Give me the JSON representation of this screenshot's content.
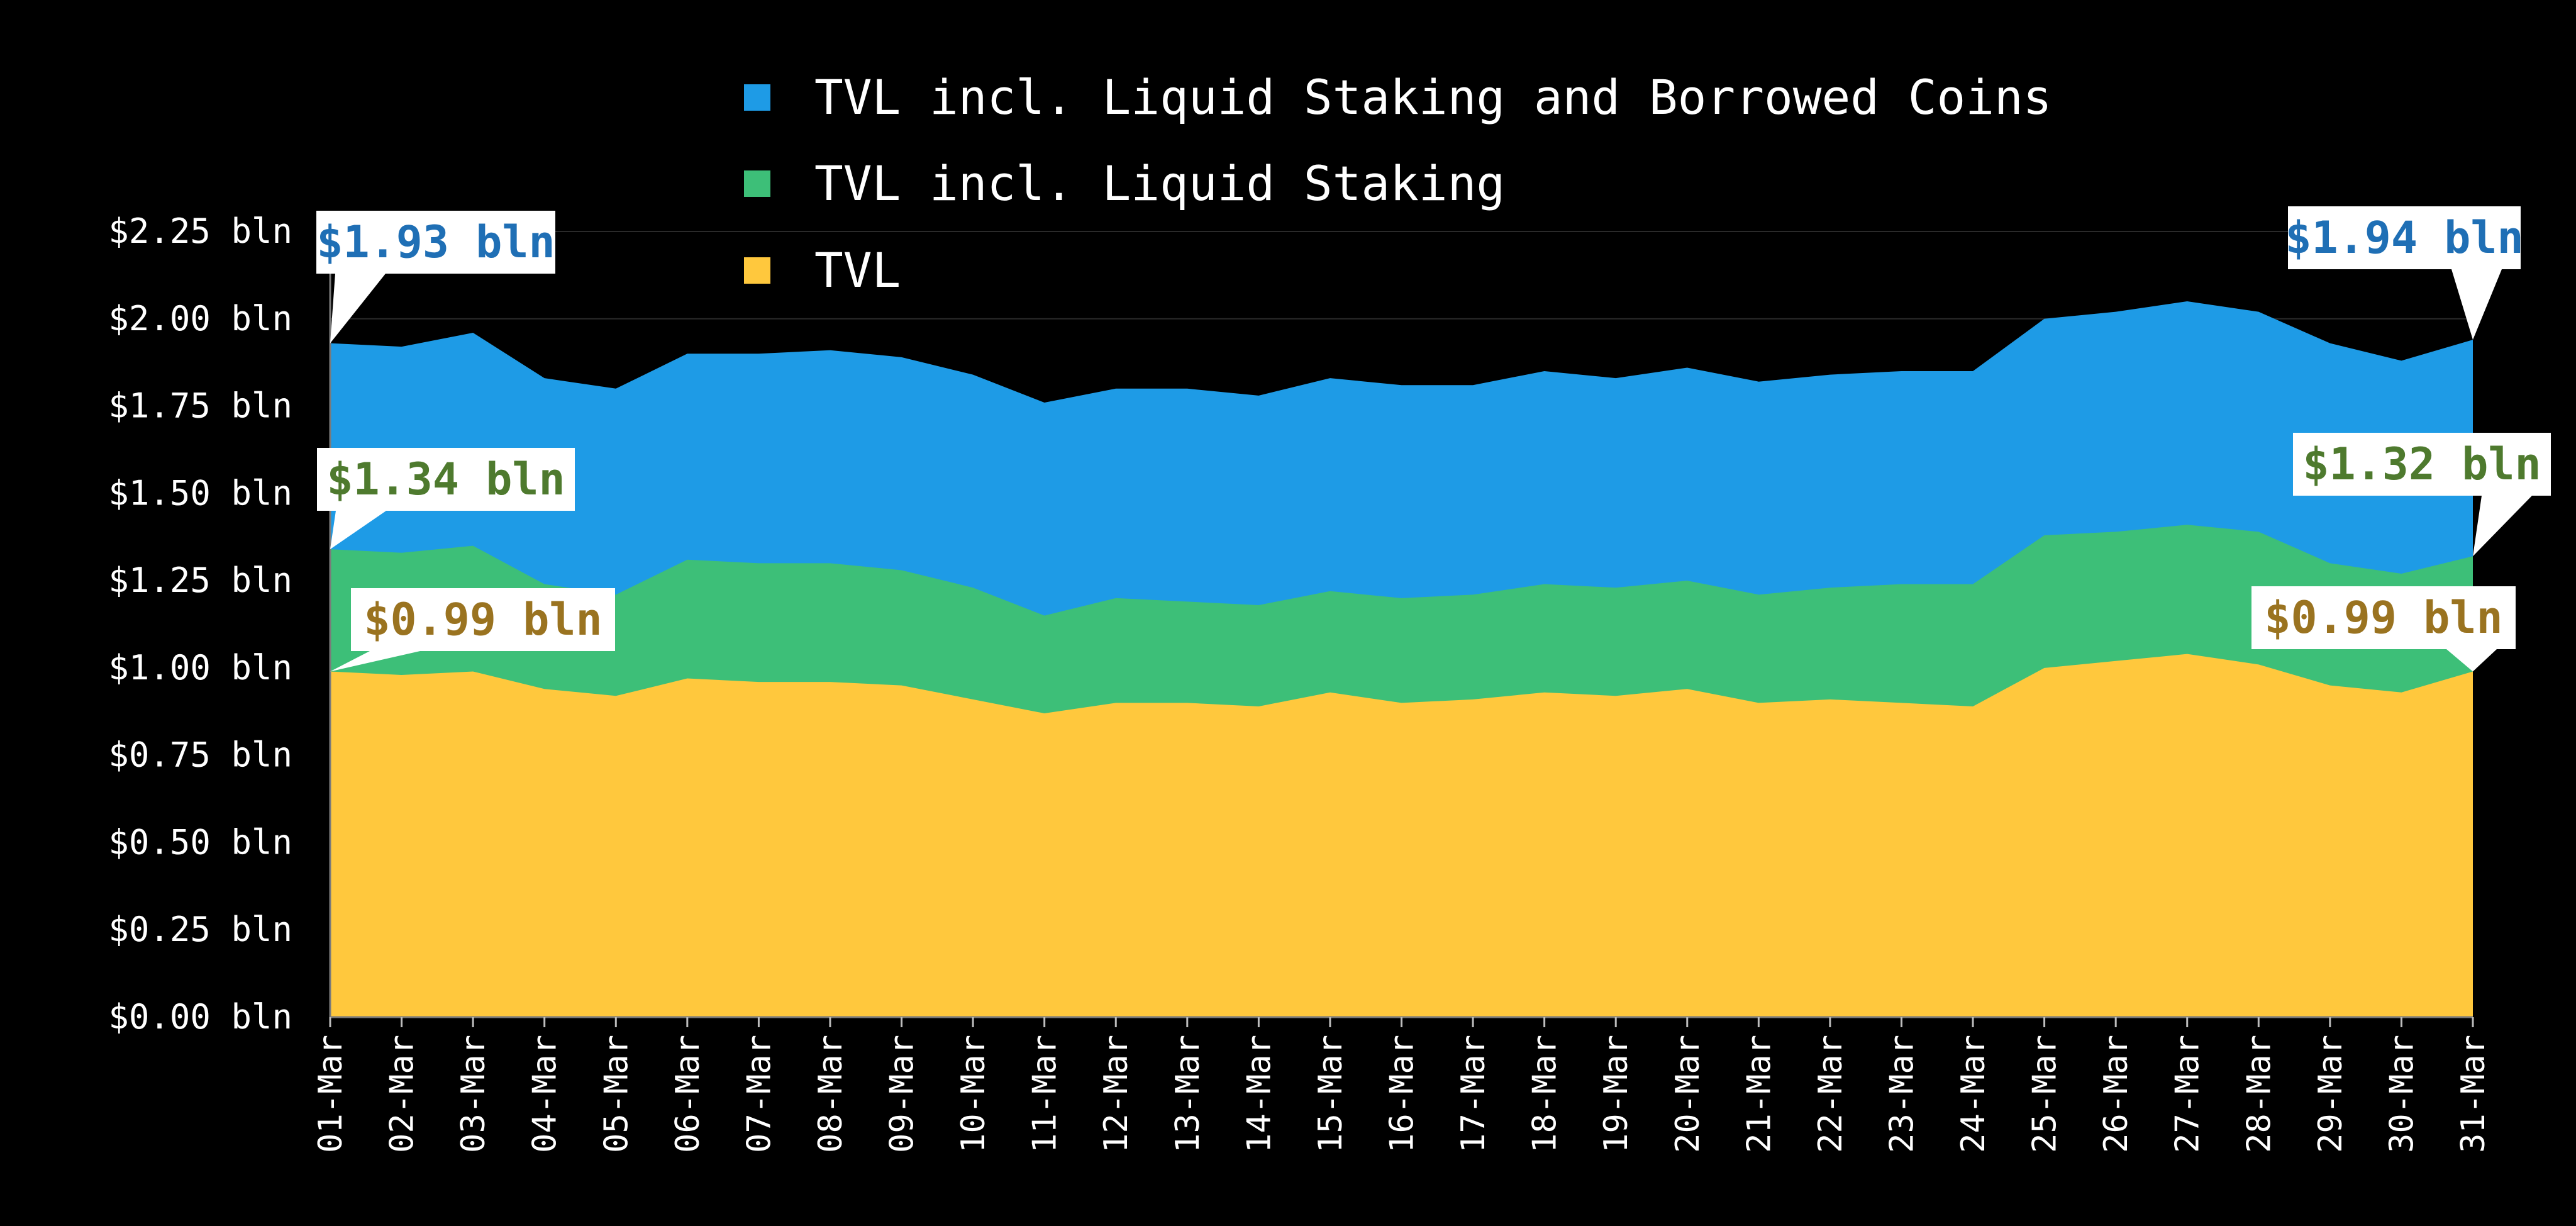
{
  "chart_data": {
    "type": "area",
    "stacked": false,
    "title": "",
    "xlabel": "",
    "ylabel": "",
    "ylim": [
      0,
      2.25
    ],
    "grid": true,
    "legend_position": "top",
    "y_tick_values": [
      0,
      0.25,
      0.5,
      0.75,
      1.0,
      1.25,
      1.5,
      1.75,
      2.0,
      2.25
    ],
    "y_tick_labels": [
      "$0.00 bln",
      "$0.25 bln",
      "$0.50 bln",
      "$0.75 bln",
      "$1.00 bln",
      "$1.25 bln",
      "$1.50 bln",
      "$1.75 bln",
      "$2.00 bln",
      "$2.25 bln"
    ],
    "categories": [
      "01-Mar",
      "02-Mar",
      "03-Mar",
      "04-Mar",
      "05-Mar",
      "06-Mar",
      "07-Mar",
      "08-Mar",
      "09-Mar",
      "10-Mar",
      "11-Mar",
      "12-Mar",
      "13-Mar",
      "14-Mar",
      "15-Mar",
      "16-Mar",
      "17-Mar",
      "18-Mar",
      "19-Mar",
      "20-Mar",
      "21-Mar",
      "22-Mar",
      "23-Mar",
      "24-Mar",
      "25-Mar",
      "26-Mar",
      "27-Mar",
      "28-Mar",
      "29-Mar",
      "30-Mar",
      "31-Mar"
    ],
    "series": [
      {
        "name": "TVL incl. Liquid Staking and Borrowed Coins",
        "color": "#1e9be6",
        "values": [
          1.93,
          1.92,
          1.96,
          1.83,
          1.8,
          1.9,
          1.9,
          1.91,
          1.89,
          1.84,
          1.76,
          1.8,
          1.8,
          1.78,
          1.83,
          1.81,
          1.81,
          1.85,
          1.83,
          1.86,
          1.82,
          1.84,
          1.85,
          1.85,
          2.0,
          2.02,
          2.05,
          2.02,
          1.93,
          1.88,
          1.94
        ]
      },
      {
        "name": "TVL incl. Liquid Staking",
        "color": "#3dbf78",
        "values": [
          1.34,
          1.33,
          1.35,
          1.24,
          1.21,
          1.31,
          1.3,
          1.3,
          1.28,
          1.23,
          1.15,
          1.2,
          1.19,
          1.18,
          1.22,
          1.2,
          1.21,
          1.24,
          1.23,
          1.25,
          1.21,
          1.23,
          1.24,
          1.24,
          1.38,
          1.39,
          1.41,
          1.39,
          1.3,
          1.27,
          1.32
        ]
      },
      {
        "name": "TVL",
        "color": "#ffc83d",
        "values": [
          0.99,
          0.98,
          0.99,
          0.94,
          0.92,
          0.97,
          0.96,
          0.96,
          0.95,
          0.91,
          0.87,
          0.9,
          0.9,
          0.89,
          0.93,
          0.9,
          0.91,
          0.93,
          0.92,
          0.94,
          0.9,
          0.91,
          0.9,
          0.89,
          1.0,
          1.02,
          1.04,
          1.01,
          0.95,
          0.93,
          0.99
        ]
      }
    ],
    "legend": [
      {
        "label": "TVL incl. Liquid Staking and Borrowed Coins",
        "color": "#1e9be6"
      },
      {
        "label": "TVL incl. Liquid Staking",
        "color": "#3dbf78"
      },
      {
        "label": "TVL",
        "color": "#ffc83d"
      }
    ],
    "annotations": [
      {
        "text": "$1.93 bln",
        "series": 0,
        "point": "first",
        "color": "#1f6fb5"
      },
      {
        "text": "$1.34 bln",
        "series": 1,
        "point": "first",
        "color": "#4e7a2e"
      },
      {
        "text": "$0.99 bln",
        "series": 2,
        "point": "first",
        "color": "#9a7320"
      },
      {
        "text": "$1.94 bln",
        "series": 0,
        "point": "last",
        "color": "#1f6fb5"
      },
      {
        "text": "$1.32 bln",
        "series": 1,
        "point": "last",
        "color": "#4e7a2e"
      },
      {
        "text": "$0.99 bln",
        "series": 2,
        "point": "last",
        "color": "#9a7320"
      }
    ]
  }
}
